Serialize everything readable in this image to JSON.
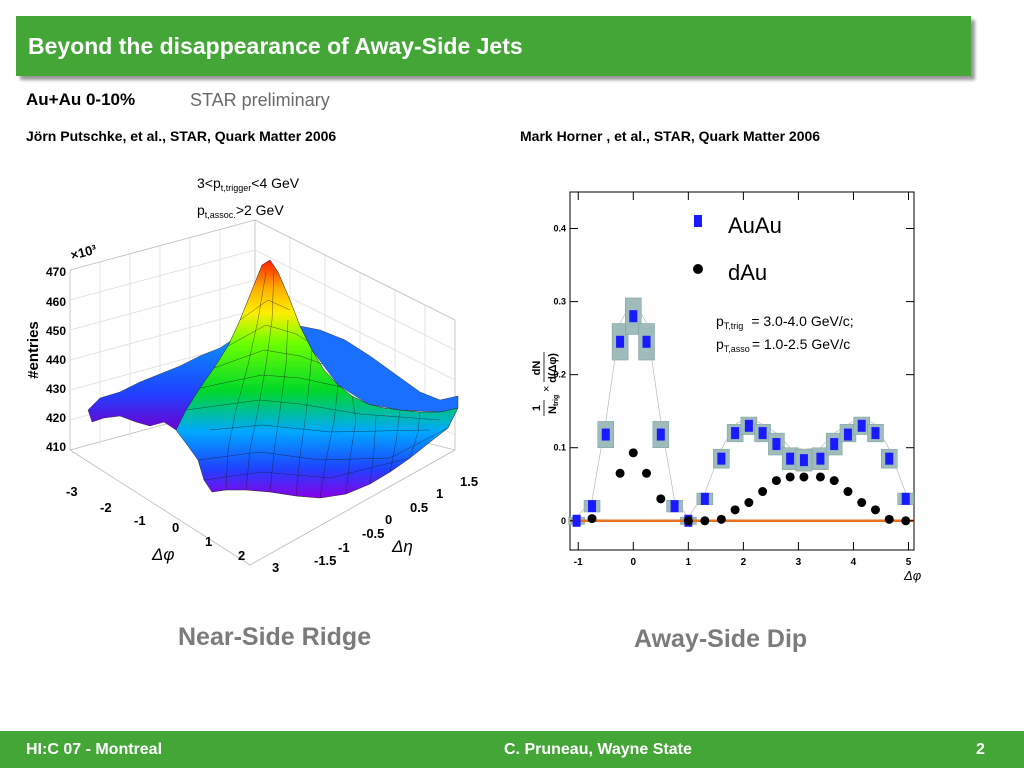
{
  "slide": {
    "title": "Beyond the disappearance of Away-Side Jets",
    "subhead": "Au+Au 0-10%",
    "preliminary": "STAR preliminary",
    "credit_left": "Jörn Putschke, et al., STAR, Quark Matter 2006",
    "credit_right": "Mark Horner , et al., STAR, Quark Matter 2006",
    "caption_left": "Near-Side Ridge",
    "caption_right": "Away-Side Dip"
  },
  "footer": {
    "left": "HI:C 07 - Montreal",
    "center": "C. Pruneau, Wayne State",
    "page": "2"
  },
  "colors": {
    "accent": "#43a637",
    "caption": "#7b7b7b",
    "auau": "#1a1aff",
    "dau": "#000000",
    "band": "#9fbcbc",
    "zero_line": "#e87020"
  },
  "chart_data": [
    {
      "type": "surface",
      "ylabel": "#entries",
      "multiplier": "×10³",
      "zlim": [
        410,
        470
      ],
      "x_axis": "Δφ",
      "y_axis": "Δη",
      "z_ticks": [
        "470",
        "460",
        "450",
        "440",
        "430",
        "420",
        "410"
      ],
      "dphi_ticks": [
        "-3",
        "-2",
        "-1",
        "0",
        "1",
        "2",
        "3"
      ],
      "deta_ticks": [
        "-1.5",
        "-1",
        "-0.5",
        "0",
        "0.5",
        "1",
        "1.5"
      ],
      "cut1_pre": "3<p",
      "cut1_sub": "t,trigger",
      "cut1_post": "<4 GeV",
      "cut2_pre": "p",
      "cut2_sub": "t,assoc.",
      "cut2_post": ">2 GeV",
      "peak_value": 468
    },
    {
      "type": "scatter",
      "xlabel": "Δφ",
      "xlim": [
        -1.15,
        5.1
      ],
      "ylim": [
        -0.04,
        0.45
      ],
      "x_ticks": [
        -1,
        0,
        1,
        2,
        3,
        4,
        5
      ],
      "y_ticks": [
        0,
        0.1,
        0.2,
        0.3,
        0.4
      ],
      "x_tick_labels": [
        "-1",
        "0",
        "1",
        "2",
        "3",
        "4",
        "5"
      ],
      "y_tick_labels": [
        "0",
        "0.1",
        "0.2",
        "0.3",
        "0.4"
      ],
      "legend": [
        "AuAu",
        "dAu"
      ],
      "legend_position": "top-right",
      "pt_trig_label": "p",
      "pt_trig_sub": "T,trig",
      "pt_trig_value": "= 3.0-4.0 GeV/c;",
      "pt_asso_label": "p",
      "pt_asso_sub": "T,asso",
      "pt_asso_value": "= 1.0-2.5 GeV/c",
      "ylabel_parts": [
        "1",
        "N",
        "trig",
        "×",
        "dN",
        "d(Δφ)"
      ],
      "series": [
        {
          "name": "AuAu",
          "x": [
            -1.03,
            -0.75,
            -0.5,
            -0.24,
            0.0,
            0.24,
            0.5,
            0.75,
            1.0,
            1.3,
            1.6,
            1.85,
            2.1,
            2.35,
            2.6,
            2.85,
            3.1,
            3.4,
            3.65,
            3.9,
            4.15,
            4.4,
            4.65,
            4.95
          ],
          "y": [
            0.0,
            0.02,
            0.118,
            0.245,
            0.28,
            0.245,
            0.118,
            0.02,
            0.0,
            0.03,
            0.085,
            0.12,
            0.13,
            0.12,
            0.105,
            0.085,
            0.083,
            0.085,
            0.105,
            0.118,
            0.13,
            0.12,
            0.085,
            0.03
          ]
        },
        {
          "name": "dAu",
          "x": [
            -0.75,
            -0.24,
            0.0,
            0.24,
            0.5,
            1.0,
            1.3,
            1.6,
            1.85,
            2.1,
            2.35,
            2.6,
            2.85,
            3.1,
            3.4,
            3.65,
            3.9,
            4.15,
            4.4,
            4.65,
            4.95
          ],
          "y": [
            0.003,
            0.065,
            0.093,
            0.065,
            0.03,
            0.0,
            0.0,
            0.002,
            0.015,
            0.025,
            0.04,
            0.055,
            0.06,
            0.06,
            0.06,
            0.055,
            0.04,
            0.025,
            0.015,
            0.002,
            0.0
          ]
        }
      ],
      "systematic_band": {
        "x": [
          -1.03,
          -0.75,
          -0.5,
          -0.24,
          0.0,
          0.24,
          0.5,
          0.75,
          1.0,
          1.3,
          1.6,
          1.85,
          2.1,
          2.35,
          2.6,
          2.85,
          3.1,
          3.4,
          3.65,
          3.9,
          4.15,
          4.4,
          4.65,
          4.95
        ],
        "low": [
          -0.005,
          0.012,
          0.1,
          0.22,
          0.255,
          0.22,
          0.1,
          0.012,
          -0.005,
          0.022,
          0.072,
          0.108,
          0.118,
          0.108,
          0.09,
          0.07,
          0.068,
          0.07,
          0.09,
          0.108,
          0.118,
          0.108,
          0.072,
          0.022
        ],
        "high": [
          0.005,
          0.028,
          0.136,
          0.27,
          0.305,
          0.27,
          0.136,
          0.028,
          0.005,
          0.038,
          0.098,
          0.132,
          0.142,
          0.132,
          0.12,
          0.1,
          0.098,
          0.1,
          0.12,
          0.132,
          0.142,
          0.132,
          0.098,
          0.038
        ]
      }
    }
  ]
}
